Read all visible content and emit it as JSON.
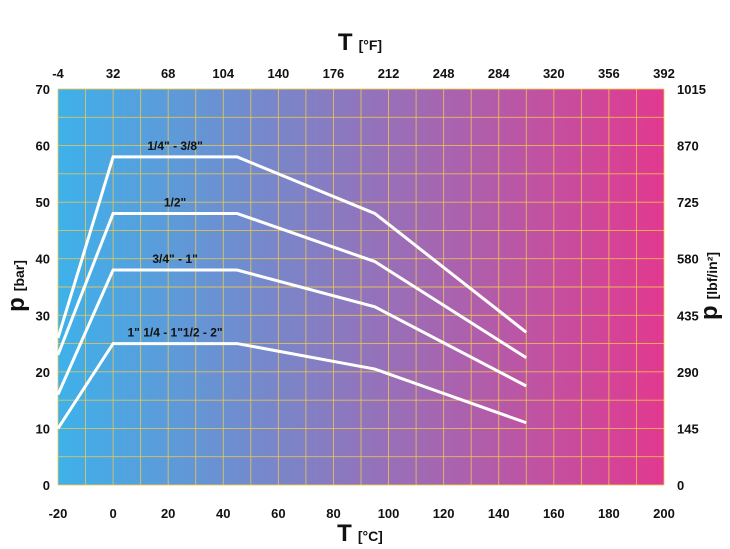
{
  "chart_data": {
    "type": "line",
    "x_label_symbol": "T",
    "x_label_unit": "[°C]",
    "x_top_label_symbol": "T",
    "x_top_label_unit": "[°F]",
    "y_label_symbol": "p",
    "y_label_unit": "[bar]",
    "y_right_label_symbol": "p",
    "y_right_label_unit": "[lbf/in²]",
    "xlim": [
      -20,
      200
    ],
    "ylim": [
      0,
      70
    ],
    "x_ticks": [
      "-20",
      "0",
      "20",
      "40",
      "60",
      "80",
      "100",
      "120",
      "140",
      "160",
      "180",
      "200"
    ],
    "x_top_ticks": [
      "-4",
      "32",
      "68",
      "104",
      "140",
      "176",
      "212",
      "248",
      "284",
      "320",
      "356",
      "392"
    ],
    "y_ticks": [
      "0",
      "10",
      "20",
      "30",
      "40",
      "50",
      "60",
      "70"
    ],
    "y_right_ticks": [
      "0",
      "145",
      "290",
      "435",
      "580",
      "725",
      "870",
      "1015"
    ],
    "grid": true,
    "background_gradient": [
      "#3eb1ea",
      "#e2398f"
    ],
    "series": [
      {
        "name": "1/4\" - 3/8\"",
        "color": "#ffffff",
        "x": [
          -20,
          0,
          45,
          95,
          150
        ],
        "y": [
          26,
          58,
          58,
          48,
          27
        ]
      },
      {
        "name": "1/2\"",
        "color": "#ffffff",
        "x": [
          -20,
          0,
          45,
          95,
          150
        ],
        "y": [
          23,
          48,
          48,
          39.5,
          22.5
        ]
      },
      {
        "name": "3/4\" - 1\"",
        "color": "#ffffff",
        "x": [
          -20,
          0,
          45,
          95,
          150
        ],
        "y": [
          16,
          38,
          38,
          31.5,
          17.5
        ]
      },
      {
        "name": "1\" 1/4 - 1\"1/2 - 2\"",
        "color": "#ffffff",
        "x": [
          -20,
          0,
          45,
          95,
          150
        ],
        "y": [
          10,
          25,
          25,
          20.5,
          11
        ]
      }
    ]
  }
}
